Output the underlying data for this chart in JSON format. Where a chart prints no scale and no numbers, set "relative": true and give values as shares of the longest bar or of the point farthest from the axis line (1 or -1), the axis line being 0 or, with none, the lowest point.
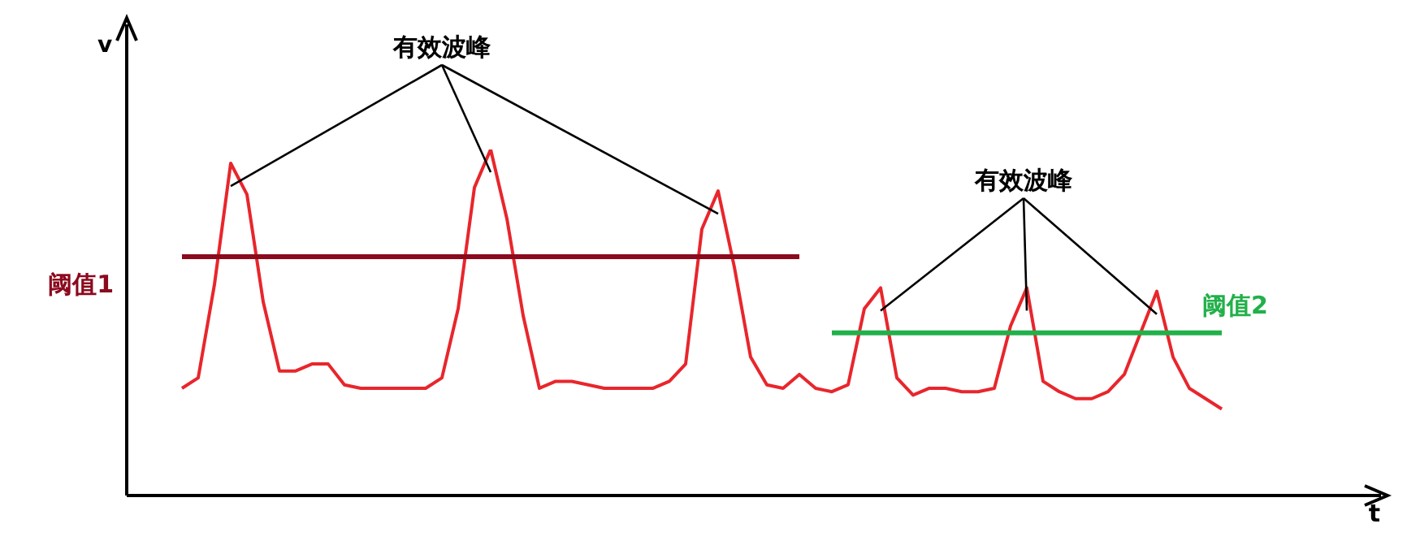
{
  "chart_data": {
    "type": "line",
    "relative": true,
    "ylabel": "v",
    "legend": false,
    "grid": false,
    "marker": "none",
    "line_style": "solid",
    "categories": [
      null,
      null,
      null,
      null,
      null,
      null,
      null,
      null,
      null,
      null,
      null,
      null,
      null,
      null,
      null,
      null,
      null,
      null,
      null,
      null,
      null,
      null,
      null,
      null,
      null,
      null,
      null,
      null,
      null,
      null,
      null,
      null,
      null,
      null,
      null,
      null,
      null,
      null,
      null,
      null,
      null,
      null,
      null,
      null,
      null,
      null,
      null,
      null,
      null,
      null,
      null,
      null,
      null,
      null,
      null,
      null,
      null,
      null,
      null,
      null,
      null,
      null,
      null,
      null,
      null
    ],
    "series": [
      {
        "color": "#e8262c",
        "values": [
          0.31,
          0.34,
          0.61,
          0.96,
          0.87,
          0.56,
          0.36,
          0.36,
          0.38,
          0.38,
          0.32,
          0.31,
          0.31,
          0.31,
          0.31,
          0.31,
          0.34,
          0.54,
          0.89,
          1,
          0.8,
          0.52,
          0.31,
          0.33,
          0.33,
          0.32,
          0.31,
          0.31,
          0.31,
          0.31,
          0.33,
          0.38,
          0.77,
          0.88,
          0.66,
          0.4,
          0.32,
          0.31,
          0.35,
          0.31,
          0.3,
          0.32,
          0.54,
          0.6,
          0.34,
          0.29,
          0.31,
          0.31,
          0.3,
          0.3,
          0.31,
          0.49,
          0.6,
          0.33,
          0.3,
          0.28,
          0.28,
          0.3,
          0.35,
          0.47,
          0.59,
          0.4,
          0.31,
          0.28,
          0.25
        ]
      },
      {
        "name": "阈值1",
        "color": "#8b0a1e",
        "values": [
          0.69,
          0.69,
          0.69,
          0.69,
          0.69,
          0.69,
          0.69,
          0.69,
          0.69,
          0.69,
          0.69,
          0.69,
          0.69,
          0.69,
          0.69,
          0.69,
          0.69,
          0.69,
          0.69,
          0.69,
          0.69,
          0.69,
          0.69,
          0.69,
          0.69,
          0.69,
          0.69,
          0.69,
          0.69,
          0.69,
          0.69,
          0.69,
          0.69,
          0.69,
          0.69,
          0.69,
          0.69,
          0.69,
          0.69,
          null,
          null,
          null,
          null,
          null,
          null,
          null,
          null,
          null,
          null,
          null,
          null,
          null,
          null,
          null,
          null,
          null,
          null,
          null,
          null,
          null,
          null,
          null,
          null,
          null,
          null
        ]
      },
      {
        "name": "阈值2",
        "color": "#22b04a",
        "values": [
          null,
          null,
          null,
          null,
          null,
          null,
          null,
          null,
          null,
          null,
          null,
          null,
          null,
          null,
          null,
          null,
          null,
          null,
          null,
          null,
          null,
          null,
          null,
          null,
          null,
          null,
          null,
          null,
          null,
          null,
          null,
          null,
          null,
          null,
          null,
          null,
          null,
          null,
          null,
          null,
          0.47,
          0.47,
          0.47,
          0.47,
          0.47,
          0.47,
          0.47,
          0.47,
          0.47,
          0.47,
          0.47,
          0.47,
          0.47,
          0.47,
          0.47,
          0.47,
          0.47,
          0.47,
          0.47,
          0.47,
          0.47,
          0.47,
          0.47,
          0.47,
          0.47
        ]
      }
    ],
    "annotations": [
      "有效波峰",
      "有效波峰",
      "t"
    ]
  }
}
